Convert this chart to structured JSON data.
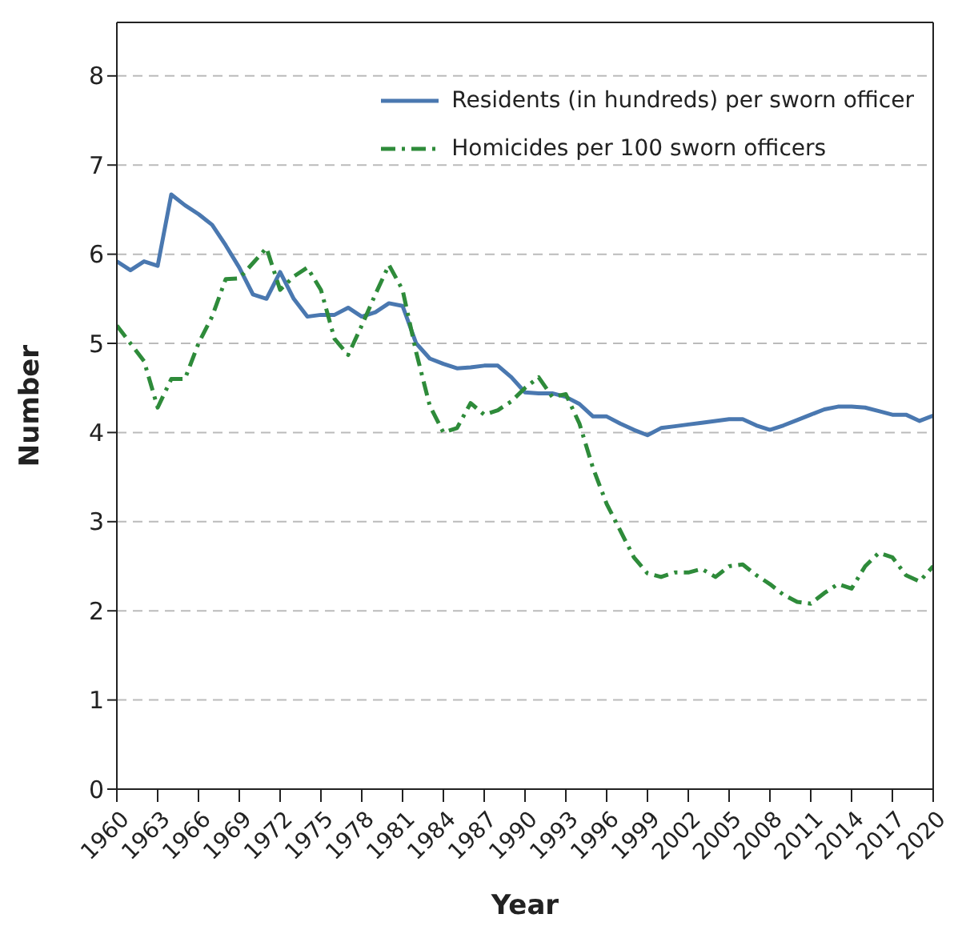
{
  "chart_data": {
    "type": "line",
    "xlabel": "Year",
    "ylabel": "Number",
    "x": [
      1960,
      1961,
      1962,
      1963,
      1964,
      1965,
      1966,
      1967,
      1968,
      1969,
      1970,
      1971,
      1972,
      1973,
      1974,
      1975,
      1976,
      1977,
      1978,
      1979,
      1980,
      1981,
      1982,
      1983,
      1984,
      1985,
      1986,
      1987,
      1988,
      1989,
      1990,
      1991,
      1992,
      1993,
      1994,
      1995,
      1996,
      1997,
      1998,
      1999,
      2000,
      2001,
      2002,
      2003,
      2004,
      2005,
      2006,
      2007,
      2008,
      2009,
      2010,
      2011,
      2012,
      2013,
      2014,
      2015,
      2016,
      2017,
      2018,
      2019,
      2020
    ],
    "series": [
      {
        "name": "Residents (in hundreds) per sworn officer",
        "color": "#4a78b0",
        "line_style": "solid",
        "values": [
          5.92,
          5.82,
          5.92,
          5.87,
          6.67,
          6.55,
          6.45,
          6.33,
          6.1,
          5.85,
          5.55,
          5.5,
          5.8,
          5.5,
          5.3,
          5.32,
          5.32,
          5.4,
          5.3,
          5.35,
          5.45,
          5.42,
          5.0,
          4.83,
          4.77,
          4.72,
          4.73,
          4.75,
          4.75,
          4.62,
          4.45,
          4.44,
          4.44,
          4.4,
          4.32,
          4.18,
          4.18,
          4.1,
          4.03,
          3.97,
          4.05,
          4.07,
          4.09,
          4.11,
          4.13,
          4.15,
          4.15,
          4.08,
          4.03,
          4.08,
          4.14,
          4.2,
          4.26,
          4.29,
          4.29,
          4.28,
          4.24,
          4.2,
          4.2,
          4.13,
          4.19
        ]
      },
      {
        "name": "Homicides per 100 sworn officers",
        "color": "#2e8b3a",
        "line_style": "dashed",
        "values": [
          5.2,
          5.0,
          4.8,
          4.28,
          4.6,
          4.6,
          5.0,
          5.3,
          5.72,
          5.73,
          5.9,
          6.07,
          5.6,
          5.75,
          5.85,
          5.6,
          5.05,
          4.87,
          5.2,
          5.55,
          5.88,
          5.6,
          4.9,
          4.3,
          4.0,
          4.05,
          4.33,
          4.2,
          4.25,
          4.35,
          4.5,
          4.62,
          4.4,
          4.43,
          4.1,
          3.6,
          3.2,
          2.9,
          2.6,
          2.42,
          2.38,
          2.43,
          2.43,
          2.47,
          2.38,
          2.5,
          2.52,
          2.4,
          2.3,
          2.18,
          2.1,
          2.08,
          2.2,
          2.3,
          2.25,
          2.5,
          2.65,
          2.6,
          2.4,
          2.33,
          2.5
        ]
      }
    ],
    "xlim": [
      1960,
      2020
    ],
    "xticks": [
      1960,
      1963,
      1966,
      1969,
      1972,
      1975,
      1978,
      1981,
      1984,
      1987,
      1990,
      1993,
      1996,
      1999,
      2002,
      2005,
      2008,
      2011,
      2014,
      2017,
      2020
    ],
    "ylim": [
      0,
      8.6
    ],
    "yticks": [
      0,
      1,
      2,
      3,
      4,
      5,
      6,
      7,
      8
    ],
    "grid": "y",
    "legend": "top right",
    "marker": "none"
  }
}
